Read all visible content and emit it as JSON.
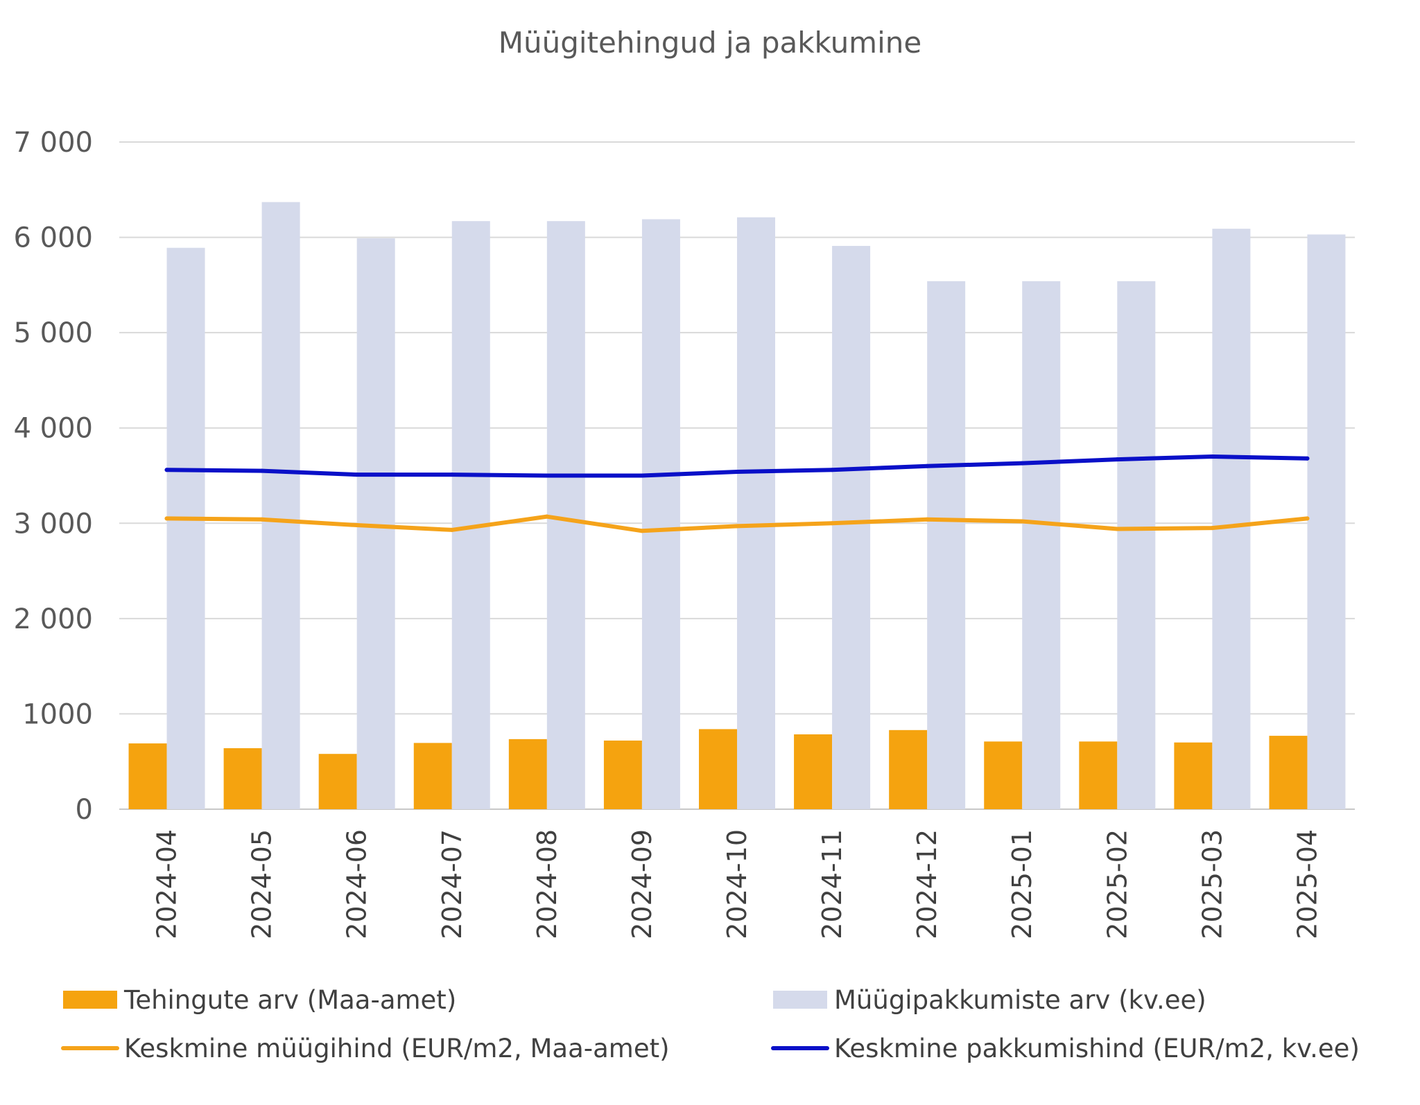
{
  "chart_data": {
    "type": "bar",
    "title": "Müügitehingud ja pakkumine",
    "xlabel": "",
    "ylabel": "",
    "ylim": [
      0,
      7000
    ],
    "y_ticks": [
      {
        "value": 0,
        "label": "0"
      },
      {
        "value": 1000,
        "label": "1000"
      },
      {
        "value": 2000,
        "label": "2 000"
      },
      {
        "value": 3000,
        "label": "3 000"
      },
      {
        "value": 4000,
        "label": "4 000"
      },
      {
        "value": 5000,
        "label": "5 000"
      },
      {
        "value": 6000,
        "label": "6 000"
      },
      {
        "value": 7000,
        "label": "7 000"
      }
    ],
    "grid": true,
    "legend_position": "bottom",
    "categories": [
      "2024-04",
      "2024-05",
      "2024-06",
      "2024-07",
      "2024-08",
      "2024-09",
      "2024-10",
      "2024-11",
      "2024-12",
      "2025-01",
      "2025-02",
      "2025-03",
      "2025-04"
    ],
    "series": [
      {
        "name": "Tehingute arv (Maa-amet)",
        "kind": "bar",
        "color": "#F5A30F",
        "values": [
          690,
          640,
          580,
          695,
          735,
          720,
          840,
          785,
          830,
          710,
          710,
          700,
          770
        ]
      },
      {
        "name": "Müügipakkumiste arv (kv.ee)",
        "kind": "bar",
        "color": "#D5DAEB",
        "values": [
          5890,
          6370,
          5990,
          6170,
          6170,
          6190,
          6210,
          5910,
          5540,
          5540,
          5540,
          6090,
          6030
        ]
      },
      {
        "name": "Keskmine müügihind (EUR/m2, Maa-amet)",
        "kind": "line",
        "color": "#F5A31A",
        "values": [
          3050,
          3040,
          2980,
          2930,
          3070,
          2920,
          2970,
          3000,
          3040,
          3020,
          2940,
          2950,
          3050
        ]
      },
      {
        "name": "Keskmine pakkumishind (EUR/m2, kv.ee)",
        "kind": "line",
        "color": "#0A10C8",
        "values": [
          3560,
          3550,
          3510,
          3510,
          3500,
          3500,
          3540,
          3560,
          3600,
          3630,
          3670,
          3700,
          3680
        ]
      }
    ]
  }
}
